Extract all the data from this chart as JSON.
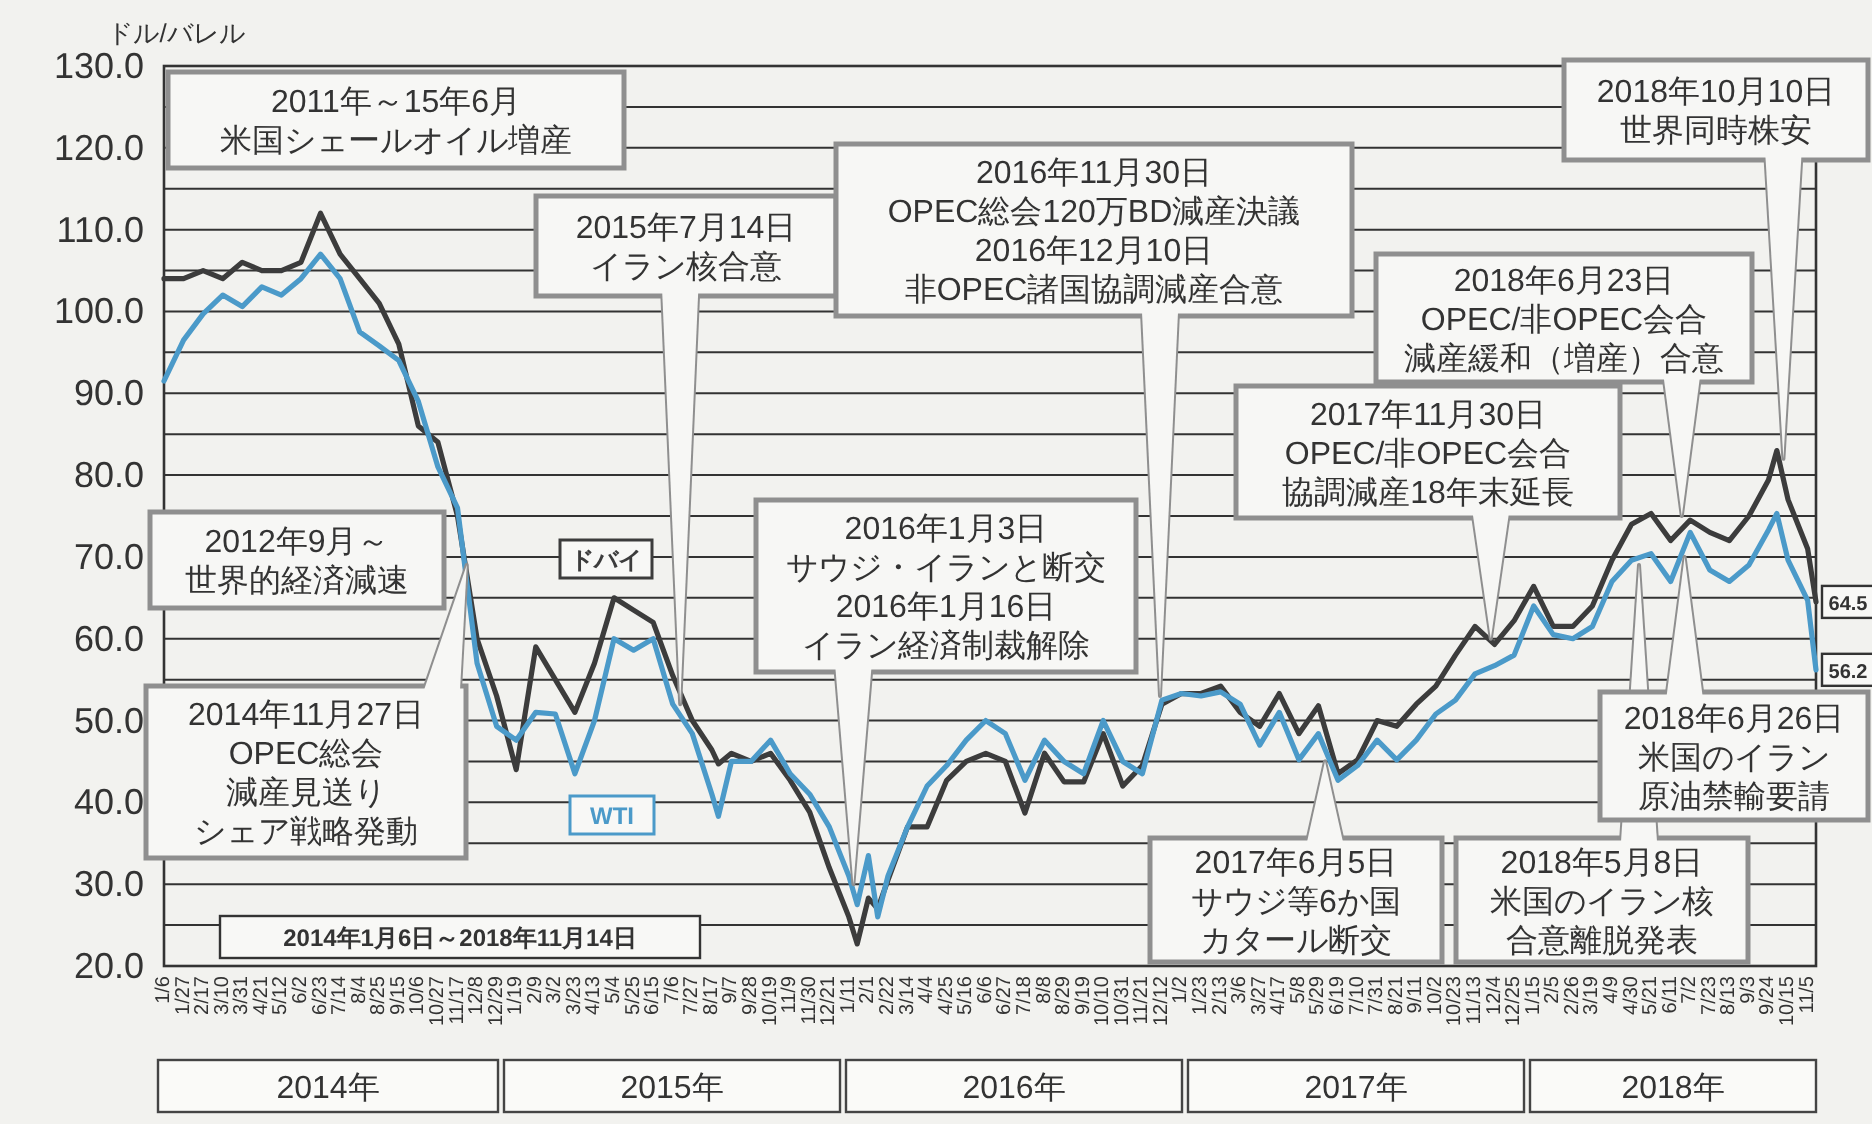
{
  "chart_data": {
    "type": "line",
    "ylabel": "ドル/バレル",
    "grid": "y",
    "xlim": [
      "2014-01-06",
      "2018-11-14"
    ],
    "ylim": [
      20,
      130
    ],
    "yticks": [
      {
        "value": 20,
        "label": "20.0"
      },
      {
        "value": 25,
        "label": null
      },
      {
        "value": 30,
        "label": "30.0"
      },
      {
        "value": 35,
        "label": null
      },
      {
        "value": 40,
        "label": "40.0"
      },
      {
        "value": 45,
        "label": null
      },
      {
        "value": 50,
        "label": "50.0"
      },
      {
        "value": 55,
        "label": null
      },
      {
        "value": 60,
        "label": "60.0"
      },
      {
        "value": 65,
        "label": null
      },
      {
        "value": 70,
        "label": "70.0"
      },
      {
        "value": 75,
        "label": null
      },
      {
        "value": 80,
        "label": "80.0"
      },
      {
        "value": 85,
        "label": null
      },
      {
        "value": 90,
        "label": "90.0"
      },
      {
        "value": 95,
        "label": null
      },
      {
        "value": 100,
        "label": "100.0"
      },
      {
        "value": 105,
        "label": null
      },
      {
        "value": 110,
        "label": "110.0"
      },
      {
        "value": 115,
        "label": null
      },
      {
        "value": 120,
        "label": "120.0"
      },
      {
        "value": 125,
        "label": null
      },
      {
        "value": 130,
        "label": "130.0"
      }
    ],
    "xticks": [
      {
        "value": "2014-01-06",
        "label": "1/6"
      },
      {
        "value": "2014-01-27",
        "label": "1/27"
      },
      {
        "value": "2014-02-17",
        "label": "2/17"
      },
      {
        "value": "2014-03-10",
        "label": "3/10"
      },
      {
        "value": "2014-03-31",
        "label": "3/31"
      },
      {
        "value": "2014-04-21",
        "label": "4/21"
      },
      {
        "value": "2014-05-12",
        "label": "5/12"
      },
      {
        "value": "2014-06-02",
        "label": "6/2"
      },
      {
        "value": "2014-06-23",
        "label": "6/23"
      },
      {
        "value": "2014-07-14",
        "label": "7/14"
      },
      {
        "value": "2014-08-04",
        "label": "8/4"
      },
      {
        "value": "2014-08-25",
        "label": "8/25"
      },
      {
        "value": "2014-09-15",
        "label": "9/15"
      },
      {
        "value": "2014-10-06",
        "label": "10/6"
      },
      {
        "value": "2014-10-27",
        "label": "10/27"
      },
      {
        "value": "2014-11-17",
        "label": "11/17"
      },
      {
        "value": "2014-12-08",
        "label": "12/8"
      },
      {
        "value": "2014-12-29",
        "label": "12/29"
      },
      {
        "value": "2015-01-19",
        "label": "1/19"
      },
      {
        "value": "2015-02-09",
        "label": "2/9"
      },
      {
        "value": "2015-03-02",
        "label": "3/2"
      },
      {
        "value": "2015-03-23",
        "label": "3/23"
      },
      {
        "value": "2015-04-13",
        "label": "4/13"
      },
      {
        "value": "2015-05-04",
        "label": "5/4"
      },
      {
        "value": "2015-05-25",
        "label": "5/25"
      },
      {
        "value": "2015-06-15",
        "label": "6/15"
      },
      {
        "value": "2015-07-06",
        "label": "7/6"
      },
      {
        "value": "2015-07-27",
        "label": "7/27"
      },
      {
        "value": "2015-08-17",
        "label": "8/17"
      },
      {
        "value": "2015-09-07",
        "label": "9/7"
      },
      {
        "value": "2015-09-28",
        "label": "9/28"
      },
      {
        "value": "2015-10-19",
        "label": "10/19"
      },
      {
        "value": "2015-11-09",
        "label": "11/9"
      },
      {
        "value": "2015-11-30",
        "label": "11/30"
      },
      {
        "value": "2015-12-21",
        "label": "12/21"
      },
      {
        "value": "2016-01-11",
        "label": "1/11"
      },
      {
        "value": "2016-02-01",
        "label": "2/1"
      },
      {
        "value": "2016-02-22",
        "label": "2/22"
      },
      {
        "value": "2016-03-14",
        "label": "3/14"
      },
      {
        "value": "2016-04-04",
        "label": "4/4"
      },
      {
        "value": "2016-04-25",
        "label": "4/25"
      },
      {
        "value": "2016-05-16",
        "label": "5/16"
      },
      {
        "value": "2016-06-06",
        "label": "6/6"
      },
      {
        "value": "2016-06-27",
        "label": "6/27"
      },
      {
        "value": "2016-07-18",
        "label": "7/18"
      },
      {
        "value": "2016-08-08",
        "label": "8/8"
      },
      {
        "value": "2016-08-29",
        "label": "8/29"
      },
      {
        "value": "2016-09-19",
        "label": "9/19"
      },
      {
        "value": "2016-10-10",
        "label": "10/10"
      },
      {
        "value": "2016-10-31",
        "label": "10/31"
      },
      {
        "value": "2016-11-21",
        "label": "11/21"
      },
      {
        "value": "2016-12-12",
        "label": "12/12"
      },
      {
        "value": "2017-01-02",
        "label": "1/2"
      },
      {
        "value": "2017-01-23",
        "label": "1/23"
      },
      {
        "value": "2017-02-13",
        "label": "2/13"
      },
      {
        "value": "2017-03-06",
        "label": "3/6"
      },
      {
        "value": "2017-03-27",
        "label": "3/27"
      },
      {
        "value": "2017-04-17",
        "label": "4/17"
      },
      {
        "value": "2017-05-08",
        "label": "5/8"
      },
      {
        "value": "2017-05-29",
        "label": "5/29"
      },
      {
        "value": "2017-06-19",
        "label": "6/19"
      },
      {
        "value": "2017-07-10",
        "label": "7/10"
      },
      {
        "value": "2017-07-31",
        "label": "7/31"
      },
      {
        "value": "2017-08-21",
        "label": "8/21"
      },
      {
        "value": "2017-09-11",
        "label": "9/11"
      },
      {
        "value": "2017-10-02",
        "label": "10/2"
      },
      {
        "value": "2017-10-23",
        "label": "10/23"
      },
      {
        "value": "2017-11-13",
        "label": "11/13"
      },
      {
        "value": "2017-12-04",
        "label": "12/4"
      },
      {
        "value": "2017-12-25",
        "label": "12/25"
      },
      {
        "value": "2018-01-15",
        "label": "1/15"
      },
      {
        "value": "2018-02-05",
        "label": "2/5"
      },
      {
        "value": "2018-02-26",
        "label": "2/26"
      },
      {
        "value": "2018-03-19",
        "label": "3/19"
      },
      {
        "value": "2018-04-09",
        "label": "4/9"
      },
      {
        "value": "2018-04-30",
        "label": "4/30"
      },
      {
        "value": "2018-05-21",
        "label": "5/21"
      },
      {
        "value": "2018-06-11",
        "label": "6/11"
      },
      {
        "value": "2018-07-02",
        "label": "7/2"
      },
      {
        "value": "2018-07-23",
        "label": "7/23"
      },
      {
        "value": "2018-08-13",
        "label": "8/13"
      },
      {
        "value": "2018-09-03",
        "label": "9/3"
      },
      {
        "value": "2018-09-24",
        "label": "9/24"
      },
      {
        "value": "2018-10-15",
        "label": "10/15"
      },
      {
        "value": "2018-11-05",
        "label": "11/5"
      }
    ],
    "x": [
      "2014-01-06",
      "2014-01-27",
      "2014-02-17",
      "2014-03-10",
      "2014-03-31",
      "2014-04-21",
      "2014-05-12",
      "2014-06-02",
      "2014-06-23",
      "2014-07-14",
      "2014-08-04",
      "2014-08-25",
      "2014-09-15",
      "2014-10-06",
      "2014-10-27",
      "2014-11-17",
      "2014-12-08",
      "2014-12-29",
      "2015-01-19",
      "2015-02-09",
      "2015-03-02",
      "2015-03-23",
      "2015-04-13",
      "2015-05-04",
      "2015-05-25",
      "2015-06-15",
      "2015-07-06",
      "2015-07-27",
      "2015-08-17",
      "2015-08-24",
      "2015-09-07",
      "2015-09-28",
      "2015-10-19",
      "2015-11-09",
      "2015-11-30",
      "2015-12-21",
      "2016-01-11",
      "2016-01-20",
      "2016-02-01",
      "2016-02-11",
      "2016-02-22",
      "2016-03-14",
      "2016-04-04",
      "2016-04-25",
      "2016-05-16",
      "2016-06-06",
      "2016-06-27",
      "2016-07-18",
      "2016-08-08",
      "2016-08-29",
      "2016-09-19",
      "2016-10-10",
      "2016-10-31",
      "2016-11-21",
      "2016-12-12",
      "2017-01-02",
      "2017-01-23",
      "2017-02-13",
      "2017-03-06",
      "2017-03-27",
      "2017-04-17",
      "2017-05-08",
      "2017-05-29",
      "2017-06-19",
      "2017-07-10",
      "2017-07-31",
      "2017-08-21",
      "2017-09-11",
      "2017-10-02",
      "2017-10-23",
      "2017-11-13",
      "2017-12-04",
      "2017-12-25",
      "2018-01-15",
      "2018-02-05",
      "2018-02-26",
      "2018-03-19",
      "2018-04-09",
      "2018-04-30",
      "2018-05-21",
      "2018-06-11",
      "2018-07-02",
      "2018-07-23",
      "2018-08-13",
      "2018-09-03",
      "2018-09-24",
      "2018-10-03",
      "2018-10-15",
      "2018-11-05",
      "2018-11-14"
    ],
    "series": [
      {
        "name": "ドバイ",
        "color": "#3c3c3c",
        "values": [
          104,
          104,
          105,
          104,
          106,
          105,
          105,
          106,
          112,
          107,
          104,
          101,
          96,
          86,
          84,
          75,
          60,
          53,
          44,
          59,
          55,
          51,
          57,
          65,
          63.5,
          62,
          55.5,
          50,
          46.4,
          44.7,
          46,
          45,
          46,
          42.7,
          38.8,
          32,
          26,
          22.7,
          28.3,
          27,
          30.5,
          37,
          37,
          42.7,
          45,
          46,
          45,
          38.7,
          46,
          42.5,
          42.5,
          48.4,
          42,
          44.5,
          52,
          53.3,
          53.3,
          54.2,
          51,
          49.3,
          53.3,
          48.4,
          51.8,
          43.5,
          45.2,
          50,
          49.3,
          52,
          54.2,
          58,
          61.5,
          59.3,
          62.2,
          66.4,
          61.5,
          61.5,
          64,
          69.6,
          74,
          75.3,
          72,
          74.5,
          73,
          72,
          75,
          79.4,
          83,
          77,
          71,
          64.5
        ]
      },
      {
        "name": "WTI",
        "color": "#4b9ac9",
        "values": [
          91.5,
          96.5,
          99.7,
          102,
          100.6,
          103,
          102,
          104,
          107,
          104,
          97.5,
          95.8,
          94,
          89,
          81,
          76,
          57,
          49.3,
          47.6,
          51,
          50.8,
          43.5,
          50,
          60,
          58.6,
          60,
          52,
          48.4,
          41,
          38.3,
          45,
          45,
          47.6,
          43.5,
          41,
          37,
          31,
          27.5,
          33.5,
          26,
          31,
          37,
          42,
          44.5,
          47.6,
          50,
          48.4,
          42.7,
          47.6,
          45,
          43.5,
          50,
          45,
          43.5,
          52.5,
          53.3,
          53,
          53.5,
          52,
          47,
          51,
          45.2,
          48.4,
          42.7,
          44.5,
          47.6,
          45.2,
          47.6,
          50.8,
          52.5,
          55.7,
          56.7,
          58,
          64,
          60.5,
          60,
          61.5,
          67,
          69.6,
          70.4,
          67,
          73,
          68.4,
          67,
          69,
          73.3,
          75.3,
          69.6,
          64.7,
          56.2
        ]
      }
    ],
    "annotations": [
      "2011年～15年6月米国シェールオイル増産",
      {
        "text": "2015年7月14日イラン核合意",
        "x": "2015-07-14",
        "y": 52
      },
      {
        "text": "2016年11月30日OPEC総会120万BD減産決議2016年12月10日非OPEC諸国協調減産合意",
        "x": "2016-12-10",
        "y": 53
      },
      {
        "text": "2018年10月10日世界同時株安",
        "x": "2018-10-10",
        "y": 82
      },
      {
        "text": "2018年6月23日OPEC/非OPEC会合減産緩和（増産）合意",
        "x": "2018-06-23",
        "y": 75
      },
      {
        "text": "2017年11月30日OPEC/非OPEC会合協調減産18年末延長",
        "x": "2017-11-30",
        "y": 60
      },
      {
        "text": "2016年1月3日サウジ・イランと断交2016年1月16日イラン経済制裁解除",
        "x": "2016-01-16",
        "y": 30
      },
      "2012年9月～世界的経済減速",
      {
        "text": "2014年11月27日OPEC総会減産見送りシェア戦略発動",
        "x": "2014-11-27",
        "y": 69
      },
      {
        "text": "2017年6月5日サウジ等6か国カタール断交",
        "x": "2017-06-05",
        "y": 45
      },
      {
        "text": "2018年5月8日米国のイラン核合意離脱発表",
        "x": "2018-05-08",
        "y": 69
      },
      {
        "text": "2018年6月26日米国のイラン原油禁輸要請",
        "x": "2018-06-26",
        "y": 70
      },
      "2014年1月6日～2018年11月14日",
      {
        "text": "64.5",
        "x": "2018-11-14",
        "y": 64.5
      },
      {
        "text": "56.2",
        "x": "2018-11-14",
        "y": 56.2
      },
      "2014年",
      "2015年",
      "2016年",
      "2017年",
      "2018年"
    ]
  }
}
